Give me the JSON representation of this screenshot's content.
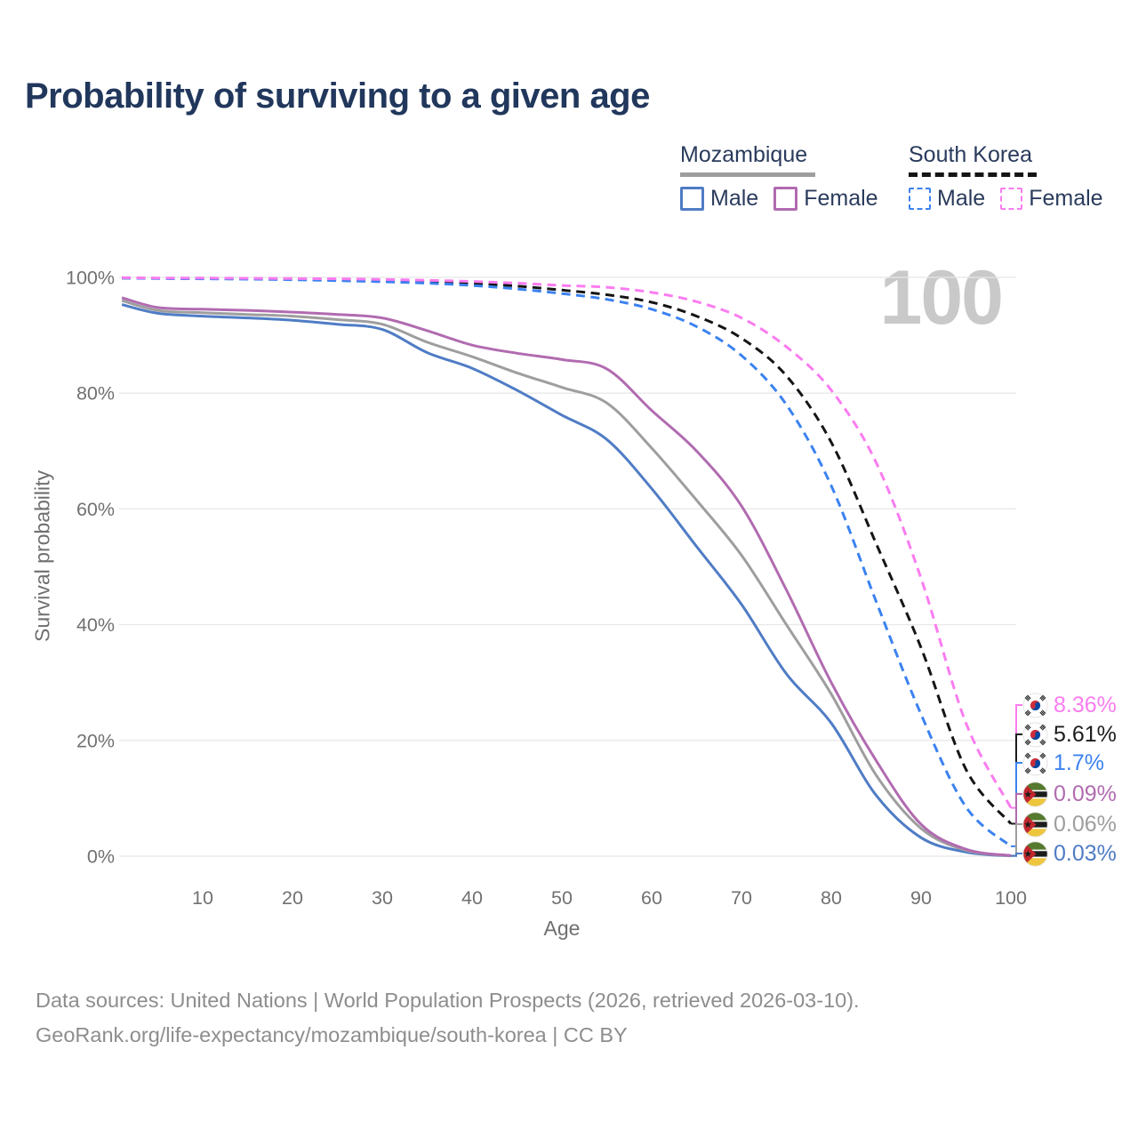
{
  "header": {
    "title": "Probability of surviving to a given age"
  },
  "watermark": "100",
  "legend": {
    "groups": [
      {
        "country": "Mozambique",
        "line_style": "solid",
        "line_color": "#9e9e9e",
        "items": [
          {
            "label": "Male",
            "color": "#4f7cc5",
            "style": "solid"
          },
          {
            "label": "Female",
            "color": "#b16bb0",
            "style": "solid"
          }
        ]
      },
      {
        "country": "South Korea",
        "line_style": "dashed",
        "line_color": "#151515",
        "items": [
          {
            "label": "Male",
            "color": "#3b82f0",
            "style": "dashed"
          },
          {
            "label": "Female",
            "color": "#fa7cf0",
            "style": "dashed"
          }
        ]
      }
    ]
  },
  "chart_data": {
    "type": "line",
    "title": "Probability of surviving to a given age",
    "xlabel": "Age",
    "ylabel": "Survival probability",
    "xlim": [
      0,
      100
    ],
    "ylim": [
      0,
      100
    ],
    "grid": "horizontal",
    "legend_position": "top-right",
    "x_ticks": [
      {
        "v": 10,
        "label": "10"
      },
      {
        "v": 20,
        "label": "20"
      },
      {
        "v": 30,
        "label": "30"
      },
      {
        "v": 40,
        "label": "40"
      },
      {
        "v": 50,
        "label": "50"
      },
      {
        "v": 60,
        "label": "60"
      },
      {
        "v": 70,
        "label": "70"
      },
      {
        "v": 80,
        "label": "80"
      },
      {
        "v": 90,
        "label": "90"
      },
      {
        "v": 100,
        "label": "100"
      }
    ],
    "y_ticks": [
      {
        "v": 0,
        "label": "0%"
      },
      {
        "v": 20,
        "label": "20%"
      },
      {
        "v": 40,
        "label": "40%"
      },
      {
        "v": 60,
        "label": "60%"
      },
      {
        "v": 80,
        "label": "80%"
      },
      {
        "v": 100,
        "label": "100%"
      }
    ],
    "x": [
      1,
      5,
      10,
      15,
      20,
      25,
      30,
      35,
      40,
      45,
      50,
      55,
      60,
      65,
      70,
      75,
      80,
      85,
      90,
      95,
      100
    ],
    "series": [
      {
        "name": "Mozambique Male",
        "country": "Mozambique",
        "sex": "male",
        "style": "solid",
        "color": "#4f7cc5",
        "end_label": "0.03%",
        "values": [
          95.3,
          93.8,
          93.3,
          93.0,
          92.6,
          91.9,
          91.0,
          87.0,
          84.3,
          80.5,
          76.2,
          72.0,
          63.5,
          53.5,
          43.5,
          31.5,
          23.0,
          10.5,
          3.2,
          0.7,
          0.03
        ]
      },
      {
        "name": "Mozambique",
        "country": "Mozambique",
        "sex": "all",
        "style": "solid",
        "color": "#9e9e9e",
        "end_label": "0.06%",
        "values": [
          96.0,
          94.3,
          93.9,
          93.6,
          93.3,
          92.7,
          91.9,
          88.8,
          86.3,
          83.5,
          81.0,
          78.3,
          70.5,
          61.5,
          52.0,
          40.0,
          28.0,
          14.0,
          4.8,
          1.0,
          0.06
        ]
      },
      {
        "name": "Mozambique Female",
        "country": "Mozambique",
        "sex": "female",
        "style": "solid",
        "color": "#b16bb0",
        "end_label": "0.09%",
        "values": [
          96.5,
          94.8,
          94.5,
          94.3,
          94.0,
          93.6,
          93.0,
          90.8,
          88.3,
          86.9,
          85.8,
          84.2,
          77.0,
          70.0,
          60.5,
          46.0,
          30.0,
          16.5,
          5.5,
          1.2,
          0.09
        ]
      },
      {
        "name": "South Korea",
        "country": "South Korea",
        "sex": "all",
        "style": "dashed",
        "color": "#151515",
        "end_label": "5.61%",
        "values": [
          99.9,
          99.85,
          99.8,
          99.75,
          99.7,
          99.6,
          99.45,
          99.25,
          98.95,
          98.5,
          97.8,
          97.0,
          95.7,
          93.3,
          89.5,
          83.0,
          71.5,
          54.0,
          36.0,
          15.0,
          5.61
        ]
      },
      {
        "name": "South Korea Male",
        "country": "South Korea",
        "sex": "male",
        "style": "dashed",
        "color": "#3b82f0",
        "end_label": "1.7%",
        "values": [
          99.9,
          99.8,
          99.75,
          99.7,
          99.6,
          99.45,
          99.25,
          99.0,
          98.6,
          98.0,
          97.2,
          96.2,
          94.5,
          91.5,
          86.5,
          78.0,
          64.0,
          44.0,
          24.5,
          8.5,
          1.7
        ]
      },
      {
        "name": "South Korea Female",
        "country": "South Korea",
        "sex": "female",
        "style": "dashed",
        "color": "#fa7cf0",
        "end_label": "8.36%",
        "values": [
          99.95,
          99.9,
          99.88,
          99.85,
          99.8,
          99.75,
          99.65,
          99.5,
          99.3,
          99.0,
          98.6,
          98.3,
          97.4,
          95.8,
          93.0,
          88.0,
          80.5,
          68.0,
          48.0,
          23.0,
          8.36
        ]
      }
    ],
    "end_labels": [
      {
        "flag": "south-korea",
        "text": "8.36%",
        "value": 8.36,
        "color": "#fa7cf0"
      },
      {
        "flag": "south-korea",
        "text": "5.61%",
        "value": 5.61,
        "color": "#1c1c1c"
      },
      {
        "flag": "south-korea",
        "text": "1.7%",
        "value": 1.7,
        "color": "#3b82f0"
      },
      {
        "flag": "mozambique",
        "text": "0.09%",
        "value": 0.09,
        "color": "#b16bb0"
      },
      {
        "flag": "mozambique",
        "text": "0.06%",
        "value": 0.06,
        "color": "#9e9e9e"
      },
      {
        "flag": "mozambique",
        "text": "0.03%",
        "value": 0.03,
        "color": "#4f7cc5"
      }
    ]
  },
  "footer": {
    "line1": "Data sources: United Nations | World Population Prospects (2026, retrieved 2026-03-10).",
    "line2": "GeoRank.org/life-expectancy/mozambique/south-korea | CC BY"
  }
}
